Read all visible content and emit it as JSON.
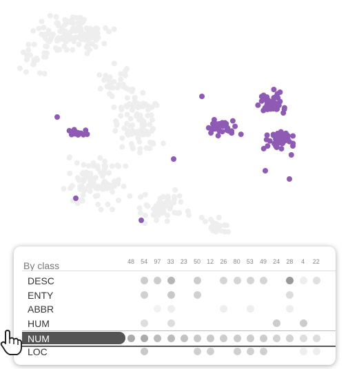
{
  "panel": {
    "title": "By class",
    "counts": [
      "48",
      "54",
      "97",
      "33",
      "23",
      "50",
      "12",
      "26",
      "80",
      "53",
      "49",
      "24",
      "28",
      "4",
      "22"
    ],
    "rows": [
      {
        "label": "DESC",
        "active": false,
        "dots": [
          null,
          "#cccccc",
          "#cccccc",
          "#b5b5b5",
          null,
          "#cccccc",
          null,
          "#d5d5d5",
          "#d5d5d5",
          "#d5d5d5",
          "#d5d5d5",
          null,
          "#999999",
          "#eeeeee",
          "#e0e0e0"
        ]
      },
      {
        "label": "ENTY",
        "active": false,
        "dots": [
          null,
          "#d0d0d0",
          null,
          "#c8c8c8",
          null,
          "#d0d0d0",
          null,
          null,
          null,
          null,
          null,
          null,
          "#dddddd",
          null,
          null
        ]
      },
      {
        "label": "ABBR",
        "active": false,
        "dots": [
          null,
          null,
          "#f2f2f2",
          "#eeeeee",
          null,
          null,
          null,
          "#eeeeee",
          null,
          "#eeeeee",
          null,
          null,
          "#eeeeee",
          null,
          null
        ]
      },
      {
        "label": "HUM",
        "active": false,
        "dots": [
          null,
          "#dddddd",
          null,
          "#dddddd",
          null,
          null,
          null,
          null,
          null,
          null,
          null,
          "#cccccc",
          null,
          "#cccccc",
          null
        ]
      },
      {
        "label": "NUM",
        "active": true,
        "dots": [
          "#aaaaaa",
          "#aaaaaa",
          "#bbbbbb",
          "#bbbbbb",
          "#c2c2c2",
          "#c8c8c8",
          "#c8c8c8",
          "#cccccc",
          "#cccccc",
          "#cccccc",
          "#cccccc",
          "#d2d2d2",
          "#d2d2d2",
          "#dddddd",
          "#dddddd"
        ]
      },
      {
        "label": "LOC",
        "active": false,
        "dots": [
          null,
          "#c8c8c8",
          null,
          null,
          null,
          "#d0d0d0",
          "#d0d0d0",
          null,
          "#d0d0d0",
          "#d0d0d0",
          "#d0d0d0",
          null,
          null,
          "#eeeeee",
          "#eeeeee"
        ]
      }
    ]
  },
  "scatter": {
    "highlight_color": "#8e5ab3",
    "background_color": "#eeeeee"
  },
  "cursor": {
    "icon": "hand-pointer-icon"
  }
}
